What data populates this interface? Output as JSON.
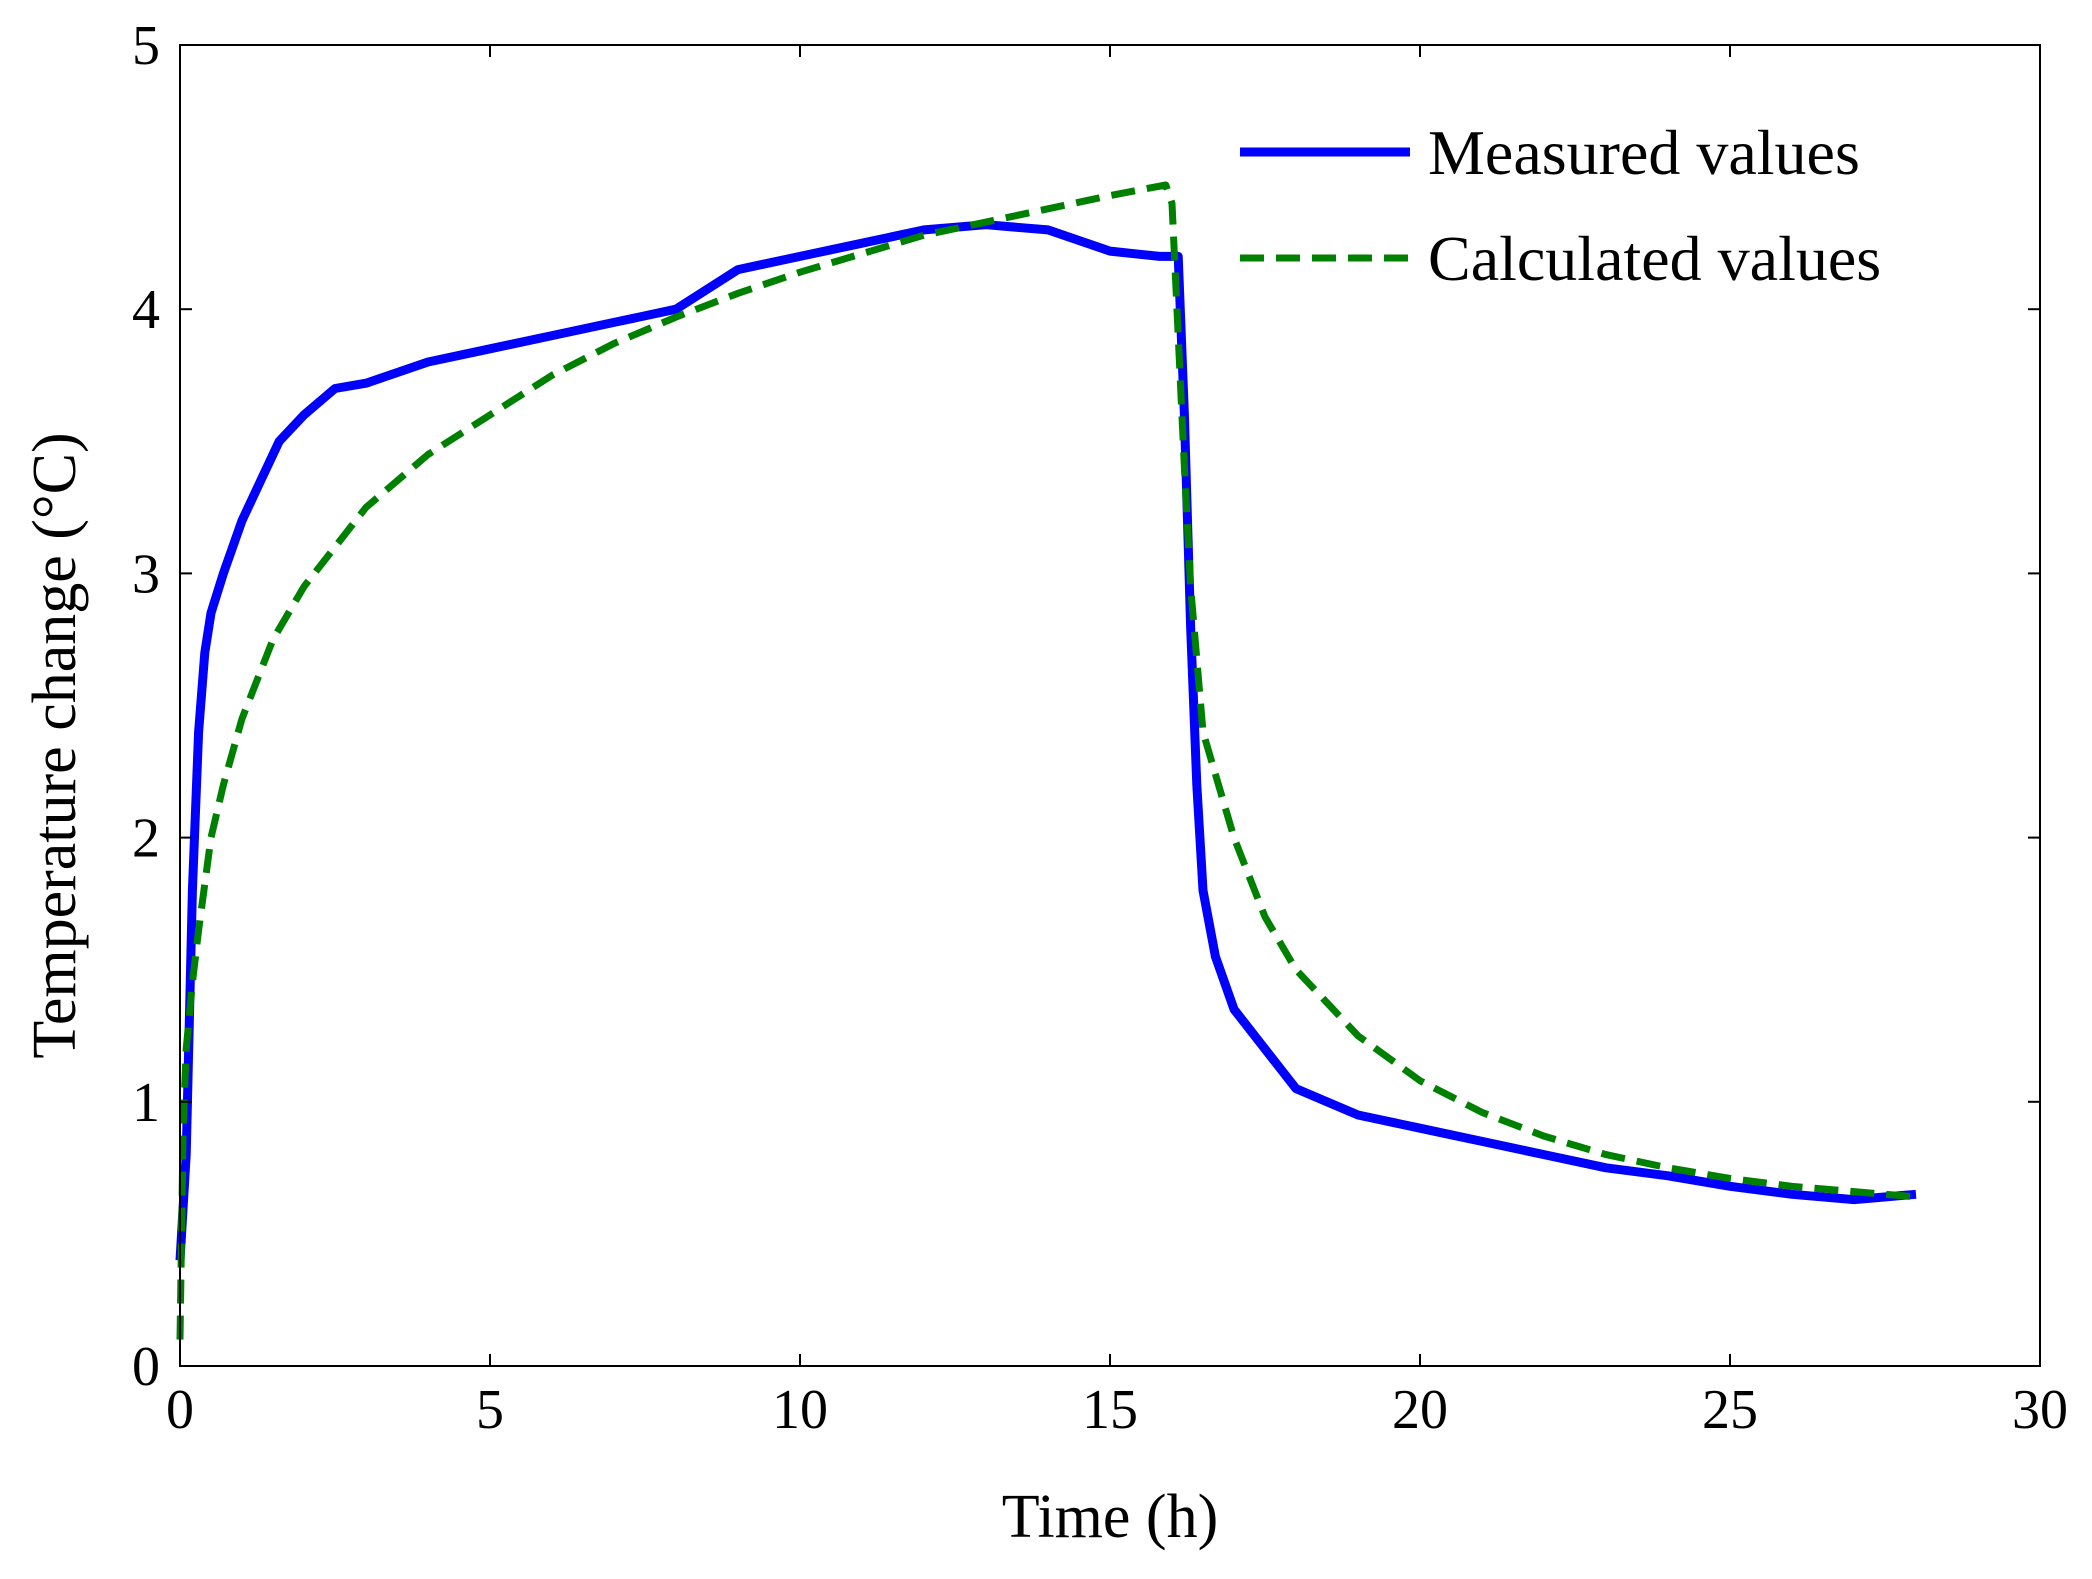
{
  "chart_data": {
    "type": "line",
    "title": "",
    "xlabel": "Time (h)",
    "ylabel": "Temperature change (°C)",
    "xlim": [
      0,
      30
    ],
    "ylim": [
      0,
      5
    ],
    "xticks": [
      "0",
      "5",
      "10",
      "15",
      "20",
      "25",
      "30"
    ],
    "yticks": [
      "0",
      "1",
      "2",
      "3",
      "4",
      "5"
    ],
    "grid": false,
    "legend_position": "top-right",
    "series": [
      {
        "name": "Measured values",
        "color": "#0000ff",
        "style": "solid",
        "x": [
          0,
          0.1,
          0.2,
          0.3,
          0.4,
          0.5,
          0.7,
          1.0,
          1.3,
          1.6,
          2.0,
          2.5,
          3.0,
          4.0,
          5.0,
          6.0,
          7.0,
          8.0,
          9.0,
          10.0,
          11.0,
          12.0,
          13.0,
          14.0,
          15.0,
          15.8,
          16.0,
          16.1,
          16.2,
          16.3,
          16.4,
          16.5,
          16.7,
          17.0,
          17.5,
          18.0,
          19.0,
          20.0,
          21.0,
          22.0,
          23.0,
          24.0,
          25.0,
          26.0,
          27.0,
          28.0
        ],
        "y": [
          0.4,
          0.8,
          1.8,
          2.4,
          2.7,
          2.85,
          3.0,
          3.2,
          3.35,
          3.5,
          3.6,
          3.7,
          3.72,
          3.8,
          3.85,
          3.9,
          3.95,
          4.0,
          4.15,
          4.2,
          4.25,
          4.3,
          4.32,
          4.3,
          4.22,
          4.2,
          4.2,
          4.2,
          3.6,
          2.8,
          2.2,
          1.8,
          1.55,
          1.35,
          1.2,
          1.05,
          0.95,
          0.9,
          0.85,
          0.8,
          0.75,
          0.72,
          0.68,
          0.65,
          0.63,
          0.65
        ]
      },
      {
        "name": "Calculated values",
        "color": "#008000",
        "style": "dashed",
        "x": [
          0,
          0.05,
          0.1,
          0.2,
          0.3,
          0.5,
          0.7,
          1.0,
          1.5,
          2.0,
          3.0,
          4.0,
          5.0,
          6.0,
          7.0,
          8.0,
          9.0,
          10.0,
          11.0,
          12.0,
          13.0,
          14.0,
          15.0,
          15.9,
          16.0,
          16.1,
          16.2,
          16.3,
          16.5,
          17.0,
          17.5,
          18.0,
          19.0,
          20.0,
          21.0,
          22.0,
          23.0,
          24.0,
          25.0,
          26.0,
          27.0,
          28.0
        ],
        "y": [
          0.1,
          0.9,
          1.2,
          1.45,
          1.65,
          2.0,
          2.2,
          2.45,
          2.75,
          2.95,
          3.25,
          3.45,
          3.6,
          3.75,
          3.87,
          3.97,
          4.06,
          4.14,
          4.21,
          4.28,
          4.33,
          4.38,
          4.43,
          4.47,
          4.4,
          3.9,
          3.4,
          2.95,
          2.4,
          2.0,
          1.7,
          1.5,
          1.25,
          1.08,
          0.96,
          0.87,
          0.8,
          0.75,
          0.71,
          0.68,
          0.66,
          0.64
        ]
      }
    ]
  }
}
